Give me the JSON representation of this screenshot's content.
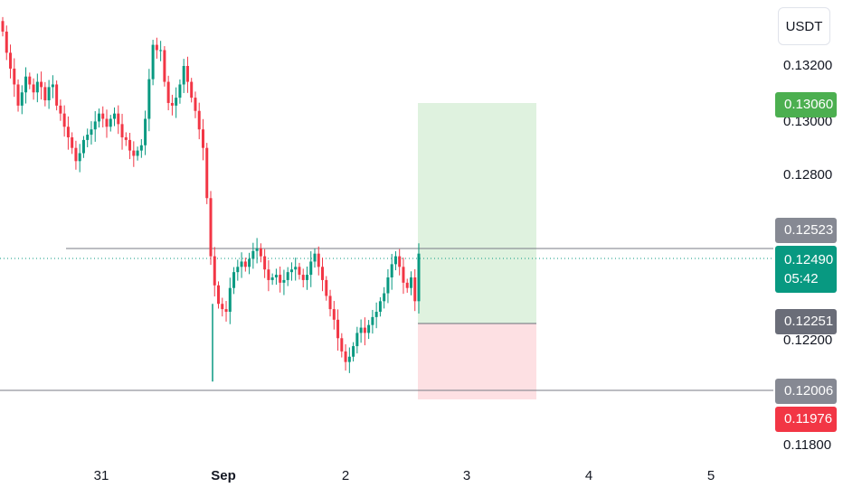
{
  "currency": "USDT",
  "y_ticks": [
    "0.13200",
    "0.13000",
    "0.12800",
    "0.12200",
    "0.11800"
  ],
  "x_ticks": [
    {
      "label": "31",
      "bold": false
    },
    {
      "label": "Sep",
      "bold": true
    },
    {
      "label": "2",
      "bold": false
    },
    {
      "label": "3",
      "bold": false
    },
    {
      "label": "4",
      "bold": false
    },
    {
      "label": "5",
      "bold": false
    }
  ],
  "price_tags": {
    "target": {
      "value": "0.13060",
      "color": "#4caf50"
    },
    "entry": {
      "value": "0.12523",
      "color": "#868993"
    },
    "current": {
      "value": "0.12490",
      "countdown": "05:42",
      "color": "#089981"
    },
    "stop_line": {
      "value": "0.12251",
      "color": "#6a6d78"
    },
    "support": {
      "value": "0.12006",
      "color": "#868993"
    },
    "stop": {
      "value": "0.11976",
      "color": "#f23645"
    }
  },
  "colors": {
    "up": "#089981",
    "down": "#f23645",
    "profit_zone": "#dff2df",
    "loss_zone": "#fde0e3"
  },
  "chart_data": {
    "type": "candlestick",
    "x_axis_ticks": [
      "31",
      "Sep",
      "2",
      "3",
      "4",
      "5"
    ],
    "y_range": [
      0.1175,
      0.1338
    ],
    "horizontal_lines": [
      0.12523,
      0.12006
    ],
    "current_price": 0.1249,
    "position": {
      "side": "long",
      "entry": 0.12523,
      "target": 0.1306,
      "stop": 0.11976
    },
    "close_series": [
      0.1333,
      0.1325,
      0.1319,
      0.1313,
      0.1305,
      0.131,
      0.1316,
      0.1313,
      0.131,
      0.1314,
      0.1312,
      0.1307,
      0.1312,
      0.1313,
      0.1305,
      0.1302,
      0.1297,
      0.1293,
      0.1289,
      0.1284,
      0.1287,
      0.1292,
      0.1294,
      0.1296,
      0.1299,
      0.1302,
      0.13,
      0.1297,
      0.13,
      0.1302,
      0.1298,
      0.1293,
      0.1292,
      0.1288,
      0.1286,
      0.1288,
      0.129,
      0.13,
      0.1315,
      0.1328,
      0.1326,
      0.1326,
      0.1314,
      0.1306,
      0.1305,
      0.1308,
      0.1313,
      0.132,
      0.1314,
      0.1308,
      0.1303,
      0.1296,
      0.1289,
      0.127,
      0.1248,
      0.1237,
      0.123,
      0.1228,
      0.1227,
      0.1236,
      0.1242,
      0.1244,
      0.1246,
      0.1244,
      0.1247,
      0.125,
      0.1251,
      0.1248,
      0.1243,
      0.1239,
      0.124,
      0.1241,
      0.1238,
      0.1239,
      0.1242,
      0.1243,
      0.1244,
      0.1241,
      0.1239,
      0.1241,
      0.1246,
      0.1249,
      0.1244,
      0.1239,
      0.1233,
      0.1228,
      0.1224,
      0.1217,
      0.1212,
      0.1208,
      0.121,
      0.1214,
      0.1219,
      0.1221,
      0.1219,
      0.1222,
      0.1225,
      0.1227,
      0.1231,
      0.1234,
      0.124,
      0.1245,
      0.1248,
      0.1244,
      0.1238,
      0.1236,
      0.124,
      0.1231,
      0.1249
    ]
  }
}
